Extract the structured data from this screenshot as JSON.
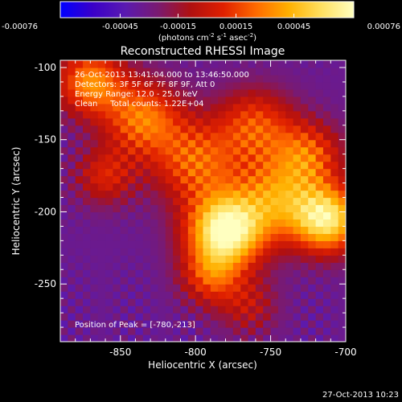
{
  "colorbar": {
    "tick_labels": [
      "-0.00076",
      "-0.00045",
      "-0.00015",
      "0.00015",
      "0.00045",
      "0.00076"
    ],
    "tick_values": [
      -0.00076,
      -0.00045,
      -0.00015,
      0.00015,
      0.00045,
      0.00076
    ],
    "range": [
      -0.00076,
      0.00076
    ],
    "unit_label_main": "(photons cm",
    "unit_sup_1": "-2",
    "unit_mid": " s",
    "unit_sup_2": "-1",
    "unit_mid_2": " asec",
    "unit_sup_3": "-2",
    "unit_end": ")",
    "colors": [
      "#0000ff",
      "#3a00c8",
      "#5a1ab0",
      "#7a1a70",
      "#b01010",
      "#e02000",
      "#ff6a00",
      "#ffb000",
      "#ffe060",
      "#ffffc0"
    ]
  },
  "chart_data": {
    "type": "heatmap",
    "title": "Reconstructed RHESSI Image",
    "xlabel": "Heliocentric X (arcsec)",
    "ylabel": "Heliocentric Y (arcsec)",
    "xlim": [
      -890,
      -700
    ],
    "ylim": [
      -290,
      -95
    ],
    "x_ticks": [
      -850,
      -800,
      -750,
      -700
    ],
    "x_tick_labels": [
      "-850",
      "-800",
      "-750",
      "-700"
    ],
    "y_ticks": [
      -100,
      -150,
      -200,
      -250
    ],
    "y_tick_labels": [
      "-100",
      "-150",
      "-200",
      "-250"
    ],
    "peak": [
      -780,
      -213
    ],
    "sources": [
      {
        "x": -780,
        "y": -213,
        "strength": 1.0,
        "sigma": 18
      },
      {
        "x": -712,
        "y": -205,
        "strength": 0.85,
        "sigma": 16
      },
      {
        "x": -745,
        "y": -190,
        "strength": 0.55,
        "sigma": 20
      },
      {
        "x": -800,
        "y": -165,
        "strength": 0.5,
        "sigma": 20
      },
      {
        "x": -835,
        "y": -135,
        "strength": 0.55,
        "sigma": 18
      },
      {
        "x": -870,
        "y": -110,
        "strength": 0.6,
        "sigma": 16
      },
      {
        "x": -760,
        "y": -140,
        "strength": 0.45,
        "sigma": 18
      },
      {
        "x": -725,
        "y": -160,
        "strength": 0.45,
        "sigma": 16
      },
      {
        "x": -790,
        "y": -245,
        "strength": 0.4,
        "sigma": 14
      },
      {
        "x": -860,
        "y": -175,
        "strength": 0.35,
        "sigma": 14
      },
      {
        "x": -765,
        "y": -265,
        "strength": 0.25,
        "sigma": 14
      }
    ],
    "annotations": [
      "26-Oct-2013 13:41:04.000 to 13:46:50.000",
      "Detectors: 3F 5F 6F 7F 8F 9F, Att 0",
      "Energy Range: 12.0 - 25.0 keV",
      "Clean     Total counts: 1.22E+04"
    ],
    "peak_label": "Position of Peak = [-780,-213]"
  },
  "footer": {
    "timestamp": "27-Oct-2013 10:23"
  }
}
